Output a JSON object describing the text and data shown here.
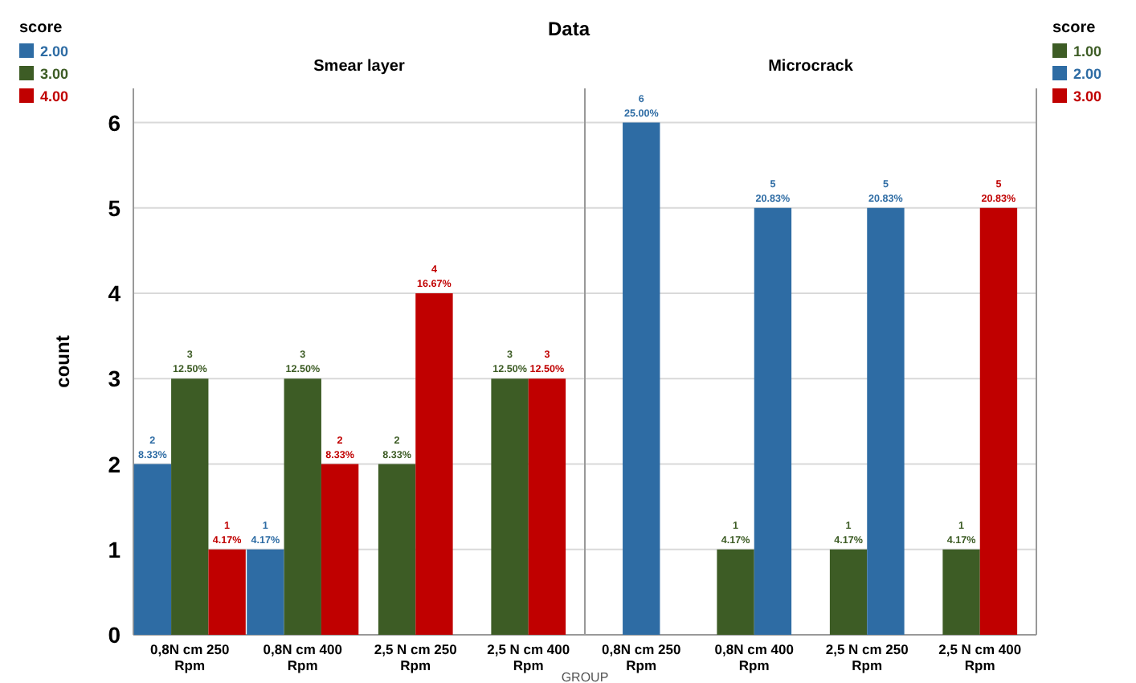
{
  "chart_data": [
    {
      "type": "bar",
      "title": "Data",
      "subtitle": "Smear layer",
      "xlabel": "GROUP",
      "ylabel": "count",
      "legend_title": "score",
      "legend": "top left",
      "grid": "y",
      "ylim": [
        0,
        6.4
      ],
      "yticks": [
        0,
        1,
        2,
        3,
        4,
        5,
        6
      ],
      "categories": [
        "0,8N cm 250 Rpm",
        "0,8N cm 400 Rpm",
        "2,5 N cm 250 Rpm",
        "2,5 N cm 400 Rpm"
      ],
      "series": [
        {
          "name": "2.00",
          "color": "#2e6ca4",
          "values": [
            2,
            1,
            null,
            null
          ],
          "value_labels": [
            "2\n8.33%",
            "1\n4.17%",
            null,
            null
          ]
        },
        {
          "name": "3.00",
          "color": "#3d5c25",
          "values": [
            3,
            3,
            2,
            3
          ],
          "value_labels": [
            "3\n12.50%",
            "3\n12.50%",
            "2\n8.33%",
            "3\n12.50%"
          ]
        },
        {
          "name": "4.00",
          "color": "#c00000",
          "values": [
            1,
            2,
            4,
            3
          ],
          "value_labels": [
            "1\n4.17%",
            "2\n8.33%",
            "4\n16.67%",
            "3\n12.50%"
          ]
        }
      ]
    },
    {
      "type": "bar",
      "title": "Microcrack",
      "legend_title": "score",
      "legend": "top right",
      "grid": "y",
      "tick_labels": "x",
      "ylim": [
        0,
        6.4
      ],
      "yticks": [
        0,
        1,
        2,
        3,
        4,
        5,
        6
      ],
      "categories": [
        "0,8N cm 250 Rpm",
        "0,8N cm 400 Rpm",
        "2,5 N cm 250 Rpm",
        "2,5 N cm 400 Rpm"
      ],
      "series": [
        {
          "name": "1.00",
          "color": "#3d5c25",
          "values": [
            null,
            1,
            1,
            1
          ],
          "value_labels": [
            null,
            "1\n4.17%",
            "1\n4.17%",
            "1\n4.17%"
          ]
        },
        {
          "name": "2.00",
          "color": "#2e6ca4",
          "values": [
            6,
            5,
            5,
            null
          ],
          "value_labels": [
            "6\n25.00%",
            "5\n20.83%",
            "5\n20.83%",
            null
          ]
        },
        {
          "name": "3.00",
          "color": "#c00000",
          "values": [
            null,
            null,
            null,
            5
          ],
          "value_labels": [
            null,
            null,
            null,
            "5\n20.83%"
          ]
        }
      ]
    }
  ]
}
